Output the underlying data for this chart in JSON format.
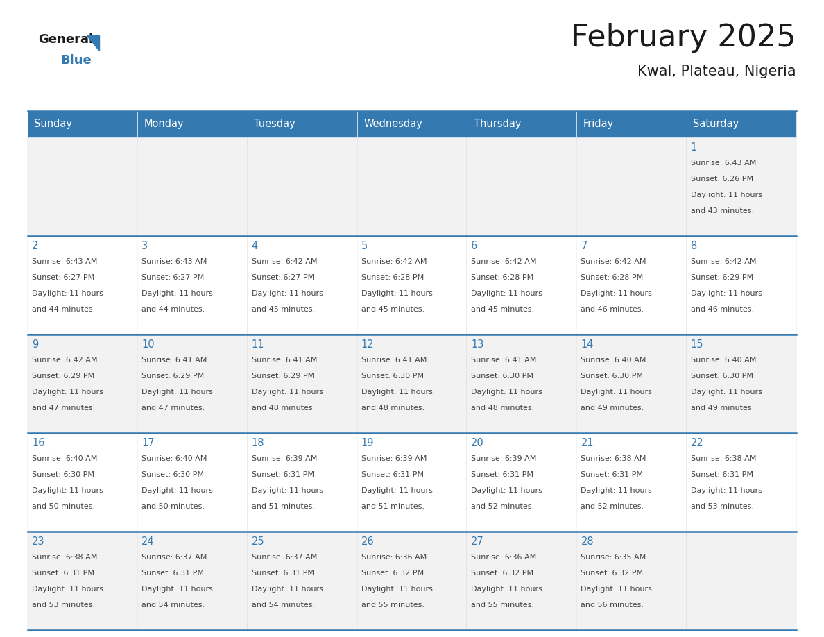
{
  "title": "February 2025",
  "subtitle": "Kwal, Plateau, Nigeria",
  "header_color": "#3579B1",
  "header_text_color": "#FFFFFF",
  "day_number_color": "#3579B1",
  "text_color": "#444444",
  "line_color": "#3579B1",
  "cell_bg": "#FFFFFF",
  "cell_alt_bg": "#F2F2F2",
  "days_of_week": [
    "Sunday",
    "Monday",
    "Tuesday",
    "Wednesday",
    "Thursday",
    "Friday",
    "Saturday"
  ],
  "weeks": [
    [
      {
        "day": null,
        "sunrise": null,
        "sunset": null,
        "daylight": null
      },
      {
        "day": null,
        "sunrise": null,
        "sunset": null,
        "daylight": null
      },
      {
        "day": null,
        "sunrise": null,
        "sunset": null,
        "daylight": null
      },
      {
        "day": null,
        "sunrise": null,
        "sunset": null,
        "daylight": null
      },
      {
        "day": null,
        "sunrise": null,
        "sunset": null,
        "daylight": null
      },
      {
        "day": null,
        "sunrise": null,
        "sunset": null,
        "daylight": null
      },
      {
        "day": 1,
        "sunrise": "6:43 AM",
        "sunset": "6:26 PM",
        "daylight": "11 hours and 43 minutes."
      }
    ],
    [
      {
        "day": 2,
        "sunrise": "6:43 AM",
        "sunset": "6:27 PM",
        "daylight": "11 hours and 44 minutes."
      },
      {
        "day": 3,
        "sunrise": "6:43 AM",
        "sunset": "6:27 PM",
        "daylight": "11 hours and 44 minutes."
      },
      {
        "day": 4,
        "sunrise": "6:42 AM",
        "sunset": "6:27 PM",
        "daylight": "11 hours and 45 minutes."
      },
      {
        "day": 5,
        "sunrise": "6:42 AM",
        "sunset": "6:28 PM",
        "daylight": "11 hours and 45 minutes."
      },
      {
        "day": 6,
        "sunrise": "6:42 AM",
        "sunset": "6:28 PM",
        "daylight": "11 hours and 45 minutes."
      },
      {
        "day": 7,
        "sunrise": "6:42 AM",
        "sunset": "6:28 PM",
        "daylight": "11 hours and 46 minutes."
      },
      {
        "day": 8,
        "sunrise": "6:42 AM",
        "sunset": "6:29 PM",
        "daylight": "11 hours and 46 minutes."
      }
    ],
    [
      {
        "day": 9,
        "sunrise": "6:42 AM",
        "sunset": "6:29 PM",
        "daylight": "11 hours and 47 minutes."
      },
      {
        "day": 10,
        "sunrise": "6:41 AM",
        "sunset": "6:29 PM",
        "daylight": "11 hours and 47 minutes."
      },
      {
        "day": 11,
        "sunrise": "6:41 AM",
        "sunset": "6:29 PM",
        "daylight": "11 hours and 48 minutes."
      },
      {
        "day": 12,
        "sunrise": "6:41 AM",
        "sunset": "6:30 PM",
        "daylight": "11 hours and 48 minutes."
      },
      {
        "day": 13,
        "sunrise": "6:41 AM",
        "sunset": "6:30 PM",
        "daylight": "11 hours and 48 minutes."
      },
      {
        "day": 14,
        "sunrise": "6:40 AM",
        "sunset": "6:30 PM",
        "daylight": "11 hours and 49 minutes."
      },
      {
        "day": 15,
        "sunrise": "6:40 AM",
        "sunset": "6:30 PM",
        "daylight": "11 hours and 49 minutes."
      }
    ],
    [
      {
        "day": 16,
        "sunrise": "6:40 AM",
        "sunset": "6:30 PM",
        "daylight": "11 hours and 50 minutes."
      },
      {
        "day": 17,
        "sunrise": "6:40 AM",
        "sunset": "6:30 PM",
        "daylight": "11 hours and 50 minutes."
      },
      {
        "day": 18,
        "sunrise": "6:39 AM",
        "sunset": "6:31 PM",
        "daylight": "11 hours and 51 minutes."
      },
      {
        "day": 19,
        "sunrise": "6:39 AM",
        "sunset": "6:31 PM",
        "daylight": "11 hours and 51 minutes."
      },
      {
        "day": 20,
        "sunrise": "6:39 AM",
        "sunset": "6:31 PM",
        "daylight": "11 hours and 52 minutes."
      },
      {
        "day": 21,
        "sunrise": "6:38 AM",
        "sunset": "6:31 PM",
        "daylight": "11 hours and 52 minutes."
      },
      {
        "day": 22,
        "sunrise": "6:38 AM",
        "sunset": "6:31 PM",
        "daylight": "11 hours and 53 minutes."
      }
    ],
    [
      {
        "day": 23,
        "sunrise": "6:38 AM",
        "sunset": "6:31 PM",
        "daylight": "11 hours and 53 minutes."
      },
      {
        "day": 24,
        "sunrise": "6:37 AM",
        "sunset": "6:31 PM",
        "daylight": "11 hours and 54 minutes."
      },
      {
        "day": 25,
        "sunrise": "6:37 AM",
        "sunset": "6:31 PM",
        "daylight": "11 hours and 54 minutes."
      },
      {
        "day": 26,
        "sunrise": "6:36 AM",
        "sunset": "6:32 PM",
        "daylight": "11 hours and 55 minutes."
      },
      {
        "day": 27,
        "sunrise": "6:36 AM",
        "sunset": "6:32 PM",
        "daylight": "11 hours and 55 minutes."
      },
      {
        "day": 28,
        "sunrise": "6:35 AM",
        "sunset": "6:32 PM",
        "daylight": "11 hours and 56 minutes."
      },
      {
        "day": null,
        "sunrise": null,
        "sunset": null,
        "daylight": null
      }
    ]
  ]
}
